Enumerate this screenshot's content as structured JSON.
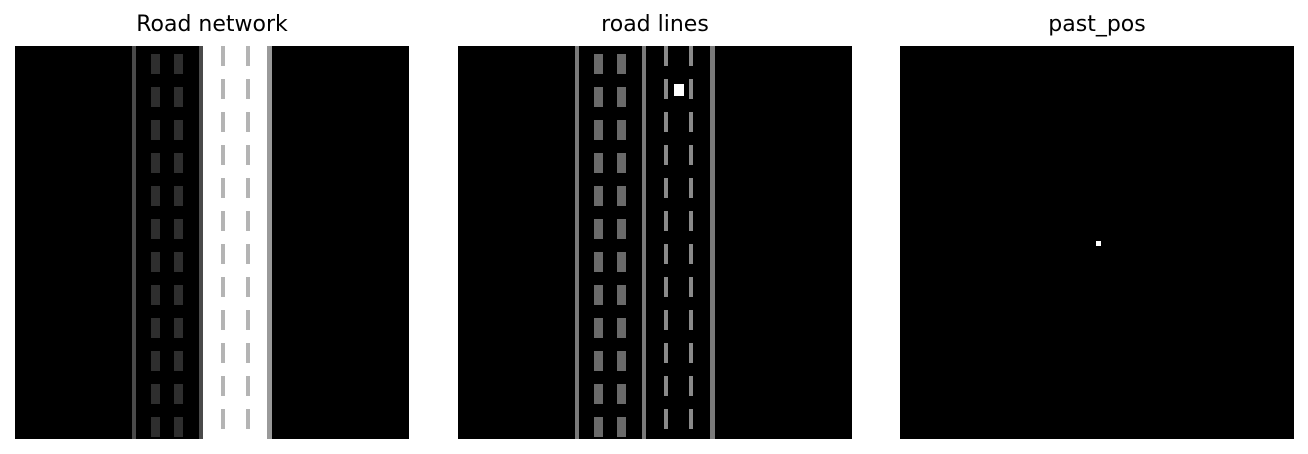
{
  "panels": [
    {
      "title": "Road network"
    },
    {
      "title": "road lines"
    },
    {
      "title": "past_pos"
    }
  ],
  "colors": {
    "background": "#000000",
    "edge_line": "#4a4a4a",
    "dash_dark": "#2e2e2e",
    "road_fill": "#ffffff",
    "dash_light": "#b4b4b4",
    "line_gray": "#7a7a7a",
    "dash_gray": "#6a6a6a",
    "marker": "#ffffff"
  }
}
